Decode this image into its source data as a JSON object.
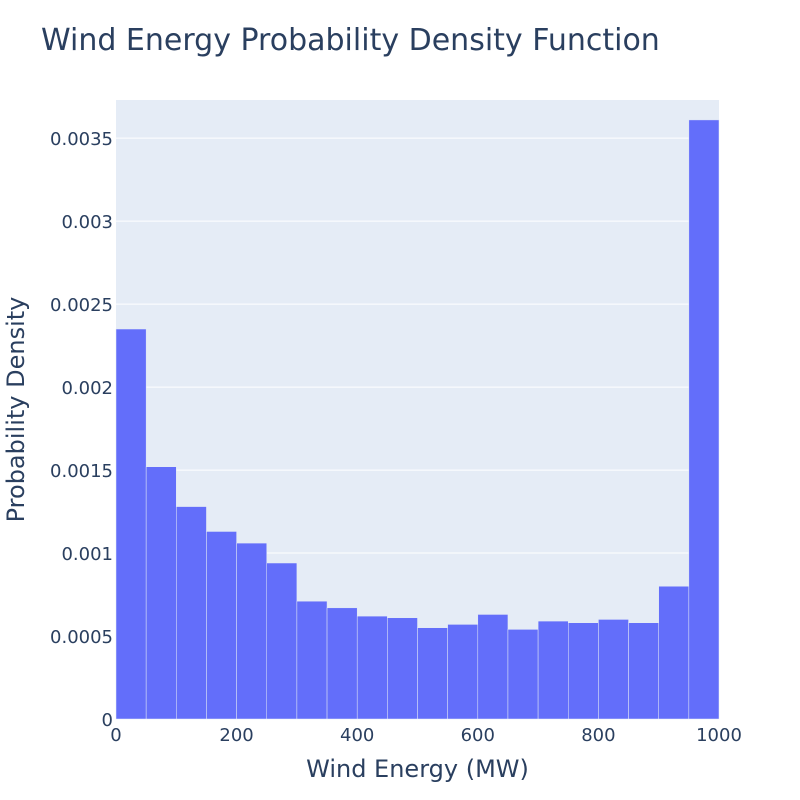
{
  "colors": {
    "bar": "#636efa",
    "bar_outline": "#e5ecf6",
    "plot_background": "#e5ecf6",
    "gridline": "#ffffff",
    "text": "#2a3f5f"
  },
  "chart_data": {
    "type": "bar",
    "subtype": "histogram",
    "title": "Wind Energy Probability Density Function",
    "xlabel": "Wind Energy (MW)",
    "ylabel": "Probability Density",
    "xlim": [
      0,
      1000
    ],
    "ylim": [
      0,
      0.00373
    ],
    "grid": {
      "x": false,
      "y": true
    },
    "legend": "none",
    "x_ticks": [
      {
        "value": 0,
        "label": "0"
      },
      {
        "value": 200,
        "label": "200"
      },
      {
        "value": 400,
        "label": "400"
      },
      {
        "value": 600,
        "label": "600"
      },
      {
        "value": 800,
        "label": "800"
      },
      {
        "value": 1000,
        "label": "1000"
      }
    ],
    "y_ticks": [
      {
        "value": 0,
        "label": "0"
      },
      {
        "value": 0.0005,
        "label": "0.0005"
      },
      {
        "value": 0.001,
        "label": "0.001"
      },
      {
        "value": 0.0015,
        "label": "0.0015"
      },
      {
        "value": 0.002,
        "label": "0.002"
      },
      {
        "value": 0.0025,
        "label": "0.0025"
      },
      {
        "value": 0.003,
        "label": "0.003"
      },
      {
        "value": 0.0035,
        "label": "0.0035"
      }
    ],
    "bins": [
      {
        "start": 0,
        "end": 50,
        "density": 0.00235
      },
      {
        "start": 50,
        "end": 100,
        "density": 0.00152
      },
      {
        "start": 100,
        "end": 150,
        "density": 0.00128
      },
      {
        "start": 150,
        "end": 200,
        "density": 0.00113
      },
      {
        "start": 200,
        "end": 250,
        "density": 0.00106
      },
      {
        "start": 250,
        "end": 300,
        "density": 0.00094
      },
      {
        "start": 300,
        "end": 350,
        "density": 0.00071
      },
      {
        "start": 350,
        "end": 400,
        "density": 0.00067
      },
      {
        "start": 400,
        "end": 450,
        "density": 0.00062
      },
      {
        "start": 450,
        "end": 500,
        "density": 0.00061
      },
      {
        "start": 500,
        "end": 550,
        "density": 0.00055
      },
      {
        "start": 550,
        "end": 600,
        "density": 0.00057
      },
      {
        "start": 600,
        "end": 650,
        "density": 0.00063
      },
      {
        "start": 650,
        "end": 700,
        "density": 0.00054
      },
      {
        "start": 700,
        "end": 750,
        "density": 0.00059
      },
      {
        "start": 750,
        "end": 800,
        "density": 0.00058
      },
      {
        "start": 800,
        "end": 850,
        "density": 0.0006
      },
      {
        "start": 850,
        "end": 900,
        "density": 0.00058
      },
      {
        "start": 900,
        "end": 950,
        "density": 0.0008
      },
      {
        "start": 950,
        "end": 1000,
        "density": 0.00361
      }
    ]
  }
}
